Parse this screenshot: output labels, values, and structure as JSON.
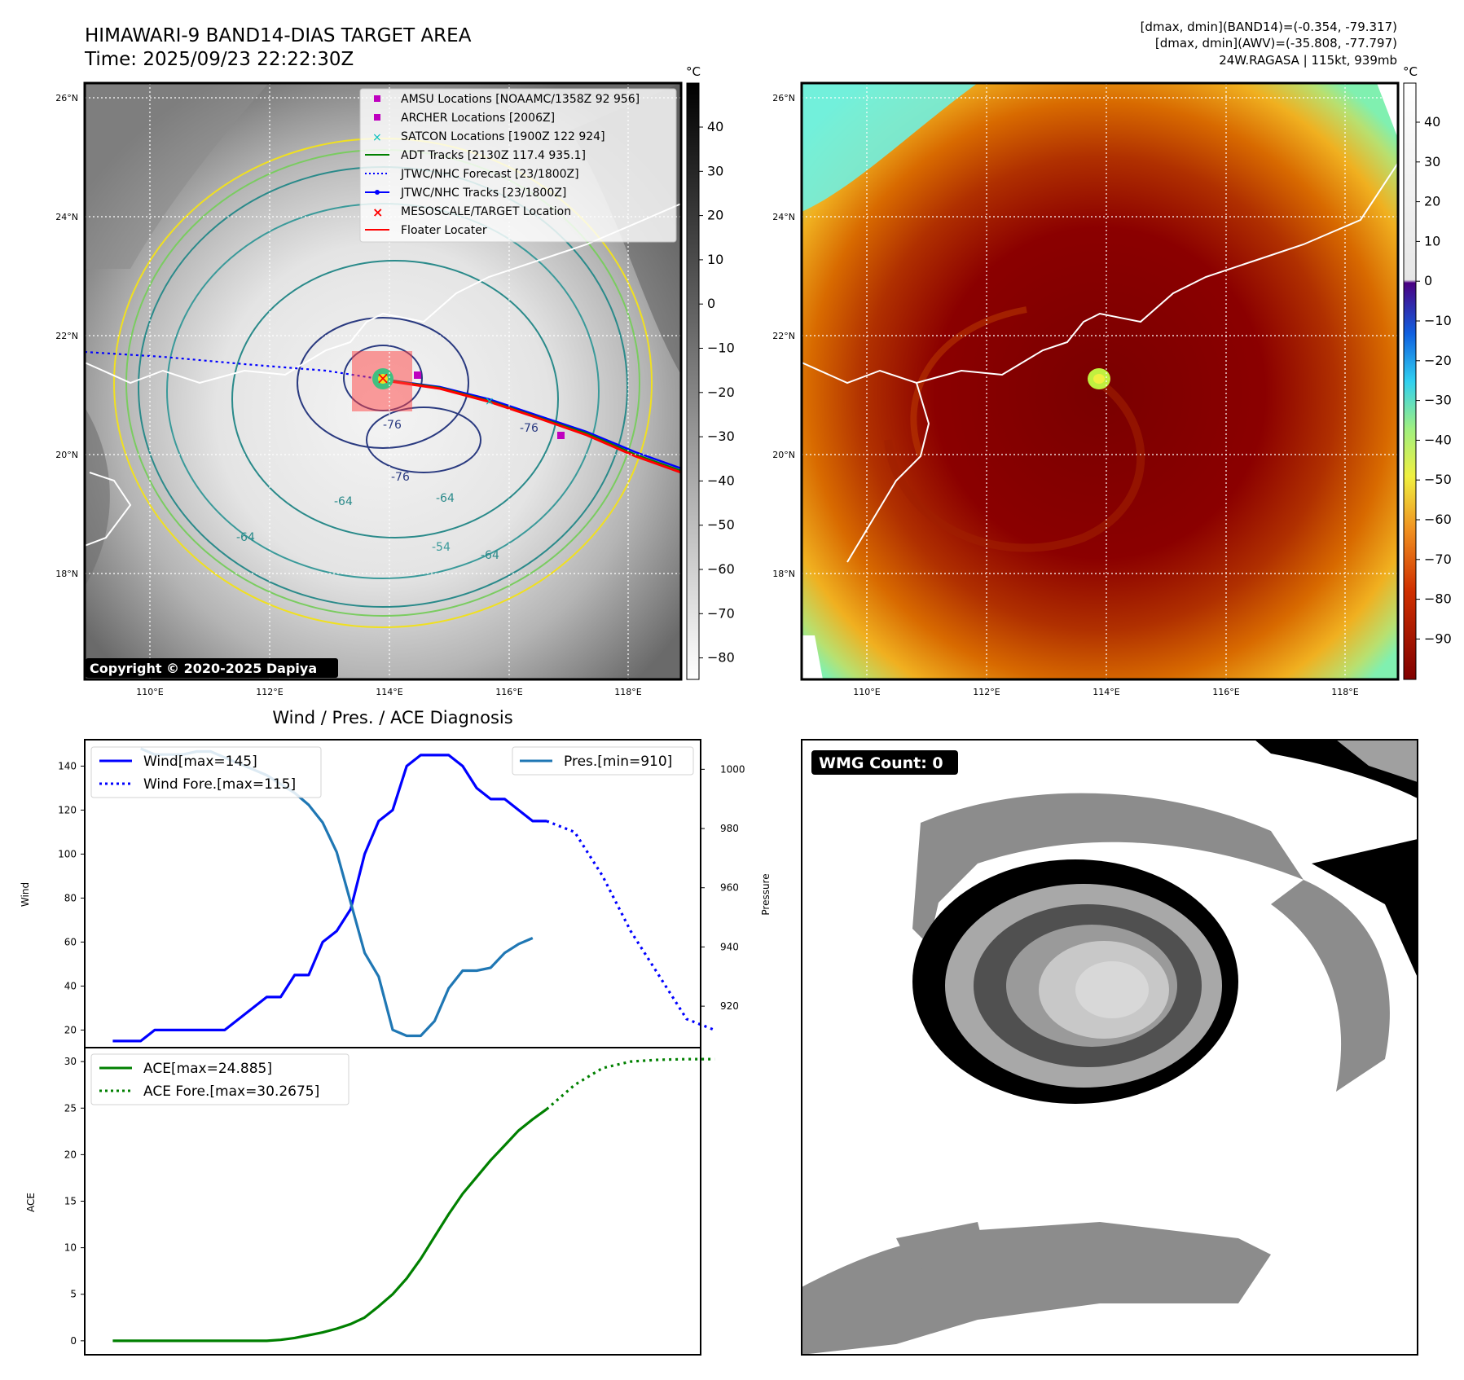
{
  "header": {
    "title_line1": "HIMAWARI-9 BAND14-DIAS TARGET AREA",
    "title_line2": "Time: 2025/09/23 22:22:30Z",
    "stats_line1": "[dmax, dmin](BAND14)=(-0.354, -79.317)",
    "stats_line2": "[dmax, dmin](AWV)=(-35.808, -77.797)",
    "stats_line3": "24W.RAGASA | 115kt, 939mb"
  },
  "map_axes": {
    "lon_labels": [
      "110°E",
      "112°E",
      "114°E",
      "116°E",
      "118°E"
    ],
    "lat_labels": [
      "26°N",
      "24°N",
      "22°N",
      "20°N",
      "18°N"
    ]
  },
  "ir_panel": {
    "copyright": "Copyright © 2020-2025 Dapiya",
    "colorbar_unit": "°C",
    "colorbar_ticks": [
      "40",
      "30",
      "20",
      "10",
      "0",
      "−10",
      "−20",
      "−30",
      "−40",
      "−50",
      "−60",
      "−70",
      "−80"
    ],
    "contour_labels": [
      "-76",
      "-76",
      "-76",
      "-64",
      "-64",
      "-64",
      "-64",
      "-54"
    ],
    "legend": [
      {
        "label": "AMSU Locations [NOAAMC/1358Z 92 956]",
        "marker": "square",
        "color": "#bf00bf"
      },
      {
        "label": "ARCHER Locations [2006Z]",
        "marker": "square",
        "color": "#bf00bf"
      },
      {
        "label": "SATCON Locations [1900Z 122 924]",
        "marker": "x",
        "color": "#00bfbf"
      },
      {
        "label": "ADT Tracks [2130Z 117.4 935.1]",
        "marker": "line",
        "color": "#008000"
      },
      {
        "label": "JTWC/NHC Forecast [23/1800Z]",
        "marker": "dotted",
        "color": "#0000ff"
      },
      {
        "label": "JTWC/NHC Tracks [23/1800Z]",
        "marker": "line-dot",
        "color": "#0000ff"
      },
      {
        "label": "MESOSCALE/TARGET Location",
        "marker": "x",
        "color": "#ff0000"
      },
      {
        "label": "Floater Locater",
        "marker": "line",
        "color": "#ff0000"
      }
    ]
  },
  "awv_panel": {
    "colorbar_unit": "°C",
    "colorbar_ticks": [
      "40",
      "30",
      "20",
      "10",
      "0",
      "−10",
      "−20",
      "−30",
      "−40",
      "−50",
      "−60",
      "−70",
      "−80",
      "−90"
    ]
  },
  "diagnosis": {
    "title": "Wind / Pres. / ACE Diagnosis",
    "wind_ylabel": "Wind",
    "pres_ylabel": "Pressure",
    "ace_ylabel": "ACE",
    "wind_yticks": [
      "20",
      "40",
      "60",
      "80",
      "100",
      "120",
      "140"
    ],
    "pres_yticks": [
      "920",
      "940",
      "960",
      "980",
      "1000"
    ],
    "ace_yticks": [
      "0",
      "5",
      "10",
      "15",
      "20",
      "25",
      "30"
    ],
    "legend_wind": "Wind[max=145]",
    "legend_wind_fore": "Wind Fore.[max=115]",
    "legend_pres": "Pres.[min=910]",
    "legend_ace": "ACE[max=24.885]",
    "legend_ace_fore": "ACE Fore.[max=30.2675]"
  },
  "wmg_panel": {
    "badge": "WMG Count: 0"
  },
  "colors": {
    "wind": "#0000ff",
    "pressure": "#1f77b4",
    "ace": "#008000",
    "floater": "#ff0000",
    "ir_contour_yellow": "#f0e020",
    "ir_contour_teal": "#2a8a8a",
    "ir_contour_navy": "#2a3a80"
  },
  "chart_data": [
    {
      "type": "line",
      "title": "Wind / Pres. / ACE Diagnosis",
      "ylabel": "Wind",
      "ylim": [
        12,
        152
      ],
      "y2label": "Pressure",
      "y2lim": [
        906,
        1010
      ],
      "xlim": [
        -2,
        42
      ],
      "series": [
        {
          "name": "Wind[max=145]",
          "axis": "wind",
          "style": "solid",
          "x": [
            0,
            2,
            3,
            5,
            6,
            8,
            9,
            10,
            11,
            12,
            13,
            14,
            15,
            16,
            17,
            18,
            19,
            20,
            21,
            22,
            23,
            24,
            25,
            26,
            27,
            28,
            29,
            30,
            31
          ],
          "values": [
            15,
            15,
            20,
            20,
            20,
            20,
            25,
            30,
            35,
            35,
            45,
            45,
            60,
            65,
            75,
            100,
            115,
            120,
            140,
            145,
            145,
            145,
            140,
            130,
            125,
            125,
            120,
            115,
            115
          ]
        },
        {
          "name": "Wind Fore.[max=115]",
          "axis": "wind",
          "style": "dotted",
          "x": [
            31,
            33,
            35,
            37,
            39,
            41,
            43
          ],
          "values": [
            115,
            110,
            90,
            65,
            45,
            25,
            20
          ]
        },
        {
          "name": "Pres.[min=910]",
          "axis": "pressure",
          "style": "solid",
          "x": [
            2,
            3,
            4,
            5,
            6,
            7,
            8,
            9,
            10,
            11,
            12,
            13,
            14,
            15,
            16,
            17,
            18,
            19,
            20,
            21,
            22,
            23,
            24,
            25,
            26,
            27,
            28,
            29,
            30
          ],
          "values": [
            1007,
            1005,
            1005,
            1005,
            1006,
            1006,
            1004,
            1002,
            1000,
            998,
            995,
            992,
            988,
            982,
            972,
            955,
            938,
            930,
            912,
            910,
            910,
            915,
            926,
            932,
            932,
            933,
            938,
            941,
            943
          ]
        }
      ]
    },
    {
      "type": "line",
      "ylabel": "ACE",
      "ylim": [
        -1.5,
        31.5
      ],
      "xlim": [
        -2,
        42
      ],
      "series": [
        {
          "name": "ACE[max=24.885]",
          "style": "solid",
          "x": [
            0,
            2,
            4,
            6,
            8,
            10,
            11,
            12,
            13,
            14,
            15,
            16,
            17,
            18,
            19,
            20,
            21,
            22,
            23,
            24,
            25,
            26,
            27,
            28,
            29,
            30,
            31
          ],
          "values": [
            0,
            0,
            0,
            0,
            0,
            0,
            0,
            0.1,
            0.3,
            0.6,
            0.9,
            1.3,
            1.8,
            2.5,
            3.7,
            5.0,
            6.7,
            8.8,
            11.2,
            13.6,
            15.8,
            17.6,
            19.4,
            21.0,
            22.6,
            23.8,
            24.885
          ]
        },
        {
          "name": "ACE Fore.[max=30.2675]",
          "style": "dotted",
          "x": [
            31,
            33,
            35,
            37,
            39,
            41,
            43
          ],
          "values": [
            24.885,
            27.5,
            29.3,
            30.0,
            30.2,
            30.2675,
            30.2675
          ]
        }
      ]
    }
  ]
}
